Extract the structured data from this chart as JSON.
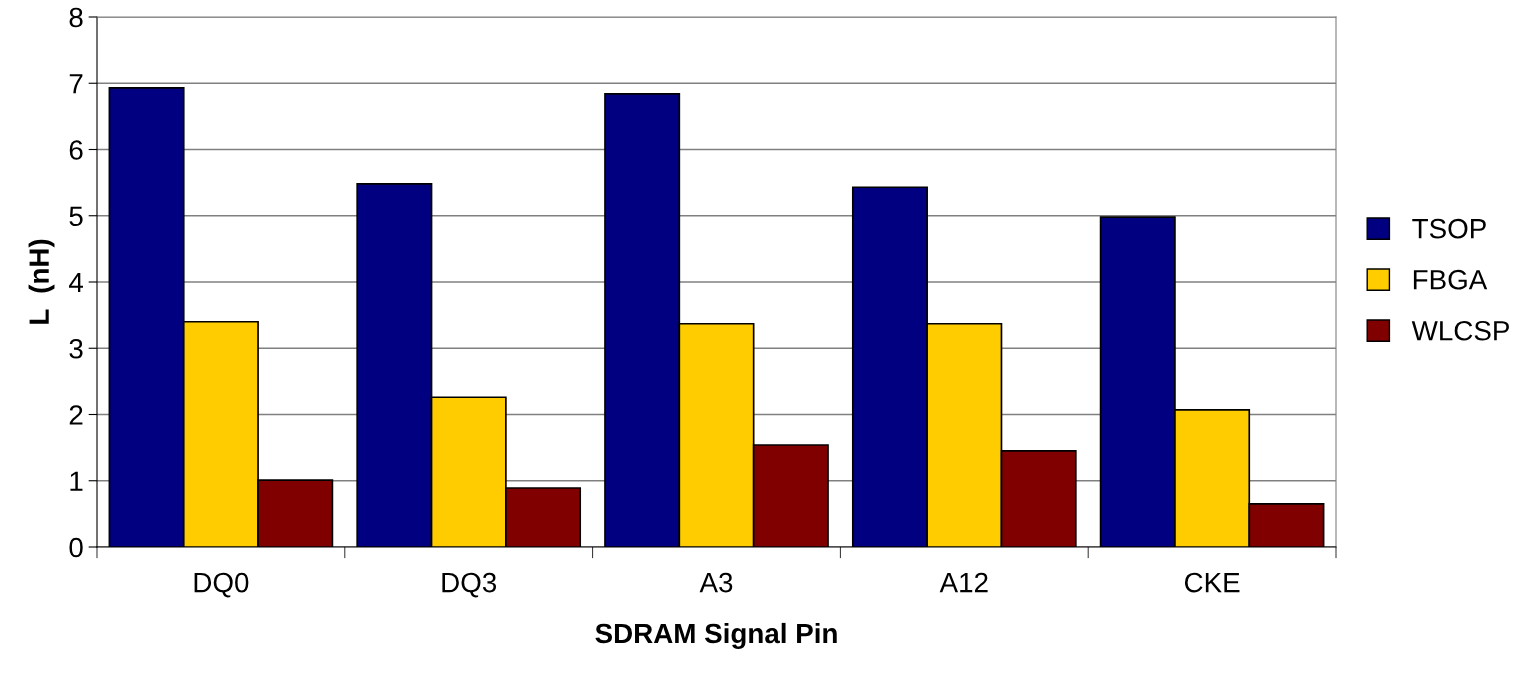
{
  "chart_data": {
    "type": "bar",
    "xlabel": "SDRAM Signal Pin",
    "ylabel": "L  (nH)",
    "categories": [
      "DQ0",
      "DQ3",
      "A3",
      "A12",
      "CKE"
    ],
    "series": [
      {
        "name": "TSOP",
        "color": "#000080",
        "values": [
          6.93,
          5.48,
          6.84,
          5.43,
          4.98
        ]
      },
      {
        "name": "FBGA",
        "color": "#ffcc00",
        "values": [
          3.4,
          2.26,
          3.37,
          3.37,
          2.07
        ]
      },
      {
        "name": "WLCSP",
        "color": "#800000",
        "values": [
          1.01,
          0.89,
          1.54,
          1.45,
          0.65
        ]
      }
    ],
    "ylim": [
      0,
      8
    ],
    "yticks": [
      0,
      1,
      2,
      3,
      4,
      5,
      6,
      7,
      8
    ],
    "grid": "y",
    "legend": "right"
  }
}
